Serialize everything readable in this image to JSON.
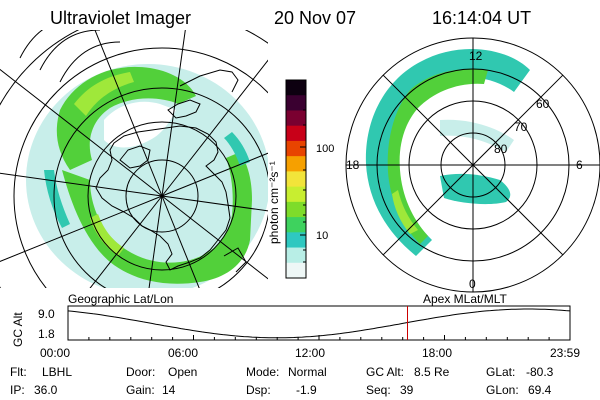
{
  "header": {
    "instrument": "Ultraviolet Imager",
    "date": "20 Nov 07",
    "time": "16:14:04 UT"
  },
  "colorbar": {
    "unit_label": "photon cm⁻²s⁻¹",
    "tick_labels": [
      "100",
      "10"
    ],
    "colors": [
      "#0d0010",
      "#3a0030",
      "#7a0030",
      "#c80018",
      "#e84400",
      "#f6a000",
      "#f2e43a",
      "#c8ee30",
      "#7edc2a",
      "#3ed25e",
      "#2ec8c0",
      "#b8eee6",
      "#eef7f6"
    ]
  },
  "geo_panel": {
    "label": "Geographic Lat/Lon"
  },
  "apex_panel": {
    "label": "Apex  MLat/MLT",
    "mlt_labels": [
      "12",
      "6",
      "0",
      "18"
    ],
    "lat_labels": [
      "60",
      "70",
      "80"
    ]
  },
  "gc_plot": {
    "ylabel": "GC Alt",
    "y_ticks": [
      "9.0",
      "1.8"
    ],
    "x_ticks": [
      "00:00",
      "06:00",
      "12:00",
      "18:00",
      "23:59"
    ],
    "marker_time": "16:14"
  },
  "footer": {
    "rows": [
      [
        {
          "k": "Flt:",
          "v": "LBHL"
        },
        {
          "k": "Door:",
          "v": "Open"
        },
        {
          "k": "Mode:",
          "v": "Normal"
        },
        {
          "k": "GC Alt:",
          "v": "8.5 Re"
        },
        {
          "k": "GLat:",
          "v": "-80.3"
        }
      ],
      [
        {
          "k": "IP:",
          "v": "36.0"
        },
        {
          "k": "Gain:",
          "v": "14"
        },
        {
          "k": "Dsp:",
          "v": "-1.9"
        },
        {
          "k": "Seq:",
          "v": "39"
        },
        {
          "k": "GLon:",
          "v": "69.4"
        }
      ]
    ]
  },
  "colors": {
    "aurora_main": "#52d03a",
    "aurora_bright": "#9fe83a",
    "aurora_edge": "#30c8b0",
    "aurora_faint": "#c8eeea",
    "marker": "#cc0000"
  }
}
